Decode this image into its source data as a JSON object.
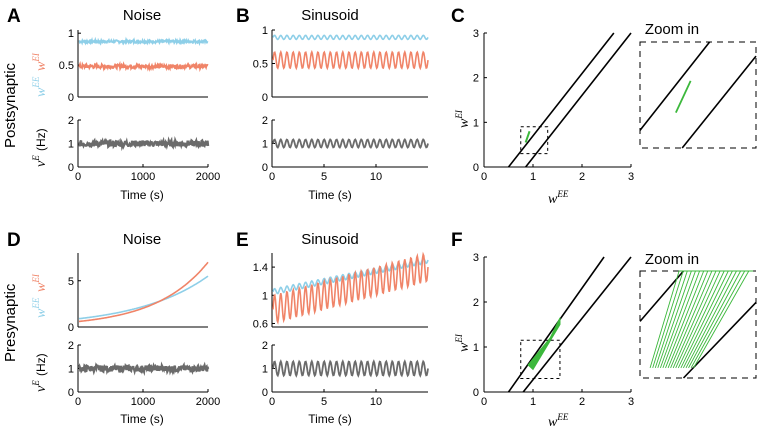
{
  "figure": {
    "row_labels": [
      "Postsynaptic",
      "Presynaptic"
    ],
    "colors": {
      "wEE": "#8ecfe8",
      "wEI": "#f08468",
      "rate": "#6b6b6b",
      "region": "#3cb83c",
      "line": "#000000"
    },
    "zoom_label": "Zoom in",
    "hz_unit": "(Hz)"
  },
  "chart_data": [
    {
      "id": "A",
      "panel_label": "A",
      "title": "Noise",
      "type": "line",
      "xlabel": "Time (s)",
      "xlim": [
        0,
        2000
      ],
      "xticks": [
        "0",
        "1000",
        "2000"
      ],
      "top": {
        "ylim": [
          0,
          1.05
        ],
        "yticks": [
          "0",
          "0.5",
          "1"
        ],
        "ylabel": "wEE wEI",
        "series": [
          {
            "name": "wEE",
            "kind": "noise",
            "x": [
              0,
              2000
            ],
            "mean": 0.87,
            "amp": 0.02
          },
          {
            "name": "wEI",
            "kind": "noise",
            "x": [
              0,
              2000
            ],
            "mean": 0.48,
            "amp": 0.03
          }
        ]
      },
      "bottom": {
        "ylim": [
          0,
          2
        ],
        "yticks": [
          "0",
          "1",
          "2"
        ],
        "ylabel": "νE (Hz)",
        "series": [
          {
            "name": "rate",
            "kind": "noise",
            "x": [
              0,
              2000
            ],
            "mean": 1.0,
            "amp": 0.13
          }
        ]
      }
    },
    {
      "id": "B",
      "panel_label": "B",
      "title": "Sinusoid",
      "type": "line",
      "xlabel": "Time (s)",
      "xlim": [
        0,
        15
      ],
      "xticks": [
        "0",
        "5",
        "10"
      ],
      "top": {
        "ylim": [
          0,
          1.0
        ],
        "yticks": [
          "0",
          "0.5",
          "1"
        ],
        "series": [
          {
            "name": "wEE",
            "kind": "sine",
            "mean": 0.89,
            "amp": 0.03,
            "period": 0.6
          },
          {
            "name": "wEI",
            "kind": "sine",
            "mean": 0.55,
            "amp": 0.12,
            "period": 0.6
          }
        ]
      },
      "bottom": {
        "ylim": [
          0,
          2
        ],
        "yticks": [
          "0",
          "1",
          "2"
        ],
        "series": [
          {
            "name": "rate",
            "kind": "sine",
            "mean": 1.0,
            "amp": 0.17,
            "period": 0.6
          }
        ]
      }
    },
    {
      "id": "C",
      "panel_label": "C",
      "type": "phase-plane",
      "xlabel": "wEE",
      "ylabel": "wEI",
      "xlim": [
        0,
        3
      ],
      "ylim": [
        0,
        3
      ],
      "xticks": [
        "0",
        "1",
        "2",
        "3"
      ],
      "yticks": [
        "0",
        "1",
        "2",
        "3"
      ],
      "lines": [
        {
          "x": [
            0.5,
            2.65
          ],
          "y": [
            0,
            3
          ]
        },
        {
          "x": [
            0.85,
            3.0
          ],
          "y": [
            0,
            3
          ]
        }
      ],
      "region": {
        "kind": "segment",
        "x": [
          0.85,
          0.93
        ],
        "y": [
          0.55,
          0.8
        ]
      },
      "zoom_box": {
        "x": [
          0.75,
          1.3
        ],
        "y": [
          0.3,
          0.9
        ]
      },
      "zoom": {
        "xlim": [
          0.75,
          1.3
        ],
        "ylim": [
          0.3,
          0.9
        ],
        "lines": [
          {
            "x": [
              0.75,
              1.08
            ],
            "y": [
              0.4,
              0.9
            ]
          },
          {
            "x": [
              0.95,
              1.3
            ],
            "y": [
              0.3,
              0.82
            ]
          }
        ],
        "region": {
          "kind": "segment",
          "x": [
            0.92,
            0.99
          ],
          "y": [
            0.5,
            0.68
          ]
        }
      }
    },
    {
      "id": "D",
      "panel_label": "D",
      "title": "Noise",
      "type": "line",
      "xlabel": "Time (s)",
      "xlim": [
        0,
        2000
      ],
      "xticks": [
        "0",
        "1000",
        "2000"
      ],
      "top": {
        "ylim": [
          0,
          8
        ],
        "yticks": [
          "0",
          "5"
        ],
        "ylabel": "wEE wEI",
        "series": [
          {
            "name": "wEE",
            "kind": "exp",
            "x": [
              0,
              2000
            ],
            "y0": 0.9,
            "y1": 5.5
          },
          {
            "name": "wEI",
            "kind": "exp",
            "x": [
              0,
              2000
            ],
            "y0": 0.6,
            "y1": 7.0
          }
        ]
      },
      "bottom": {
        "ylim": [
          0,
          2
        ],
        "yticks": [
          "0",
          "1",
          "2"
        ],
        "ylabel": "νE (Hz)",
        "series": [
          {
            "name": "rate",
            "kind": "noise",
            "x": [
              0,
              2000
            ],
            "mean": 1.0,
            "amp": 0.13
          }
        ]
      }
    },
    {
      "id": "E",
      "panel_label": "E",
      "title": "Sinusoid",
      "type": "line",
      "xlabel": "Time (s)",
      "xlim": [
        0,
        15
      ],
      "xticks": [
        "0",
        "5",
        "10"
      ],
      "top": {
        "ylim": [
          0.55,
          1.6
        ],
        "yticks": [
          "0.6",
          "1",
          "1.4"
        ],
        "series": [
          {
            "name": "wEE",
            "kind": "sine-trend",
            "y0": 1.05,
            "y1": 1.5,
            "amp": 0.04,
            "period": 0.6
          },
          {
            "name": "wEI",
            "kind": "sine-trend",
            "y0": 0.8,
            "y1": 1.4,
            "amp": 0.2,
            "period": 0.6
          }
        ]
      },
      "bottom": {
        "ylim": [
          0,
          2
        ],
        "yticks": [
          "0",
          "1",
          "2"
        ],
        "series": [
          {
            "name": "rate",
            "kind": "sine",
            "mean": 1.0,
            "amp": 0.3,
            "period": 0.6
          }
        ]
      }
    },
    {
      "id": "F",
      "panel_label": "F",
      "type": "phase-plane",
      "xlabel": "wEE",
      "ylabel": "wEI",
      "xlim": [
        0,
        3
      ],
      "ylim": [
        0,
        3
      ],
      "xticks": [
        "0",
        "1",
        "2",
        "3"
      ],
      "yticks": [
        "0",
        "1",
        "2",
        "3"
      ],
      "lines": [
        {
          "x": [
            0.5,
            2.45
          ],
          "y": [
            0,
            3
          ]
        },
        {
          "x": [
            0.8,
            3.0
          ],
          "y": [
            0,
            3
          ]
        }
      ],
      "region": {
        "kind": "polygon",
        "x": [
          0.9,
          1.35,
          1.55,
          1.55,
          1.0
        ],
        "y": [
          0.6,
          1.2,
          1.65,
          1.5,
          0.5
        ]
      },
      "zoom_box": {
        "x": [
          0.75,
          1.55
        ],
        "y": [
          0.3,
          1.15
        ]
      },
      "zoom": {
        "xlim": [
          0.75,
          1.55
        ],
        "ylim": [
          0.3,
          1.15
        ],
        "lines": [
          {
            "x": [
              0.75,
              1.05
            ],
            "y": [
              0.75,
              1.15
            ]
          },
          {
            "x": [
              1.05,
              1.55
            ],
            "y": [
              0.3,
              0.9
            ]
          }
        ],
        "region": {
          "kind": "fan",
          "base_x": [
            0.82,
            1.12
          ],
          "base_y": [
            0.38,
            0.38
          ],
          "tip_y": 1.15,
          "tip_x_range": [
            1.02,
            1.5
          ],
          "strokes": 18
        }
      }
    }
  ]
}
